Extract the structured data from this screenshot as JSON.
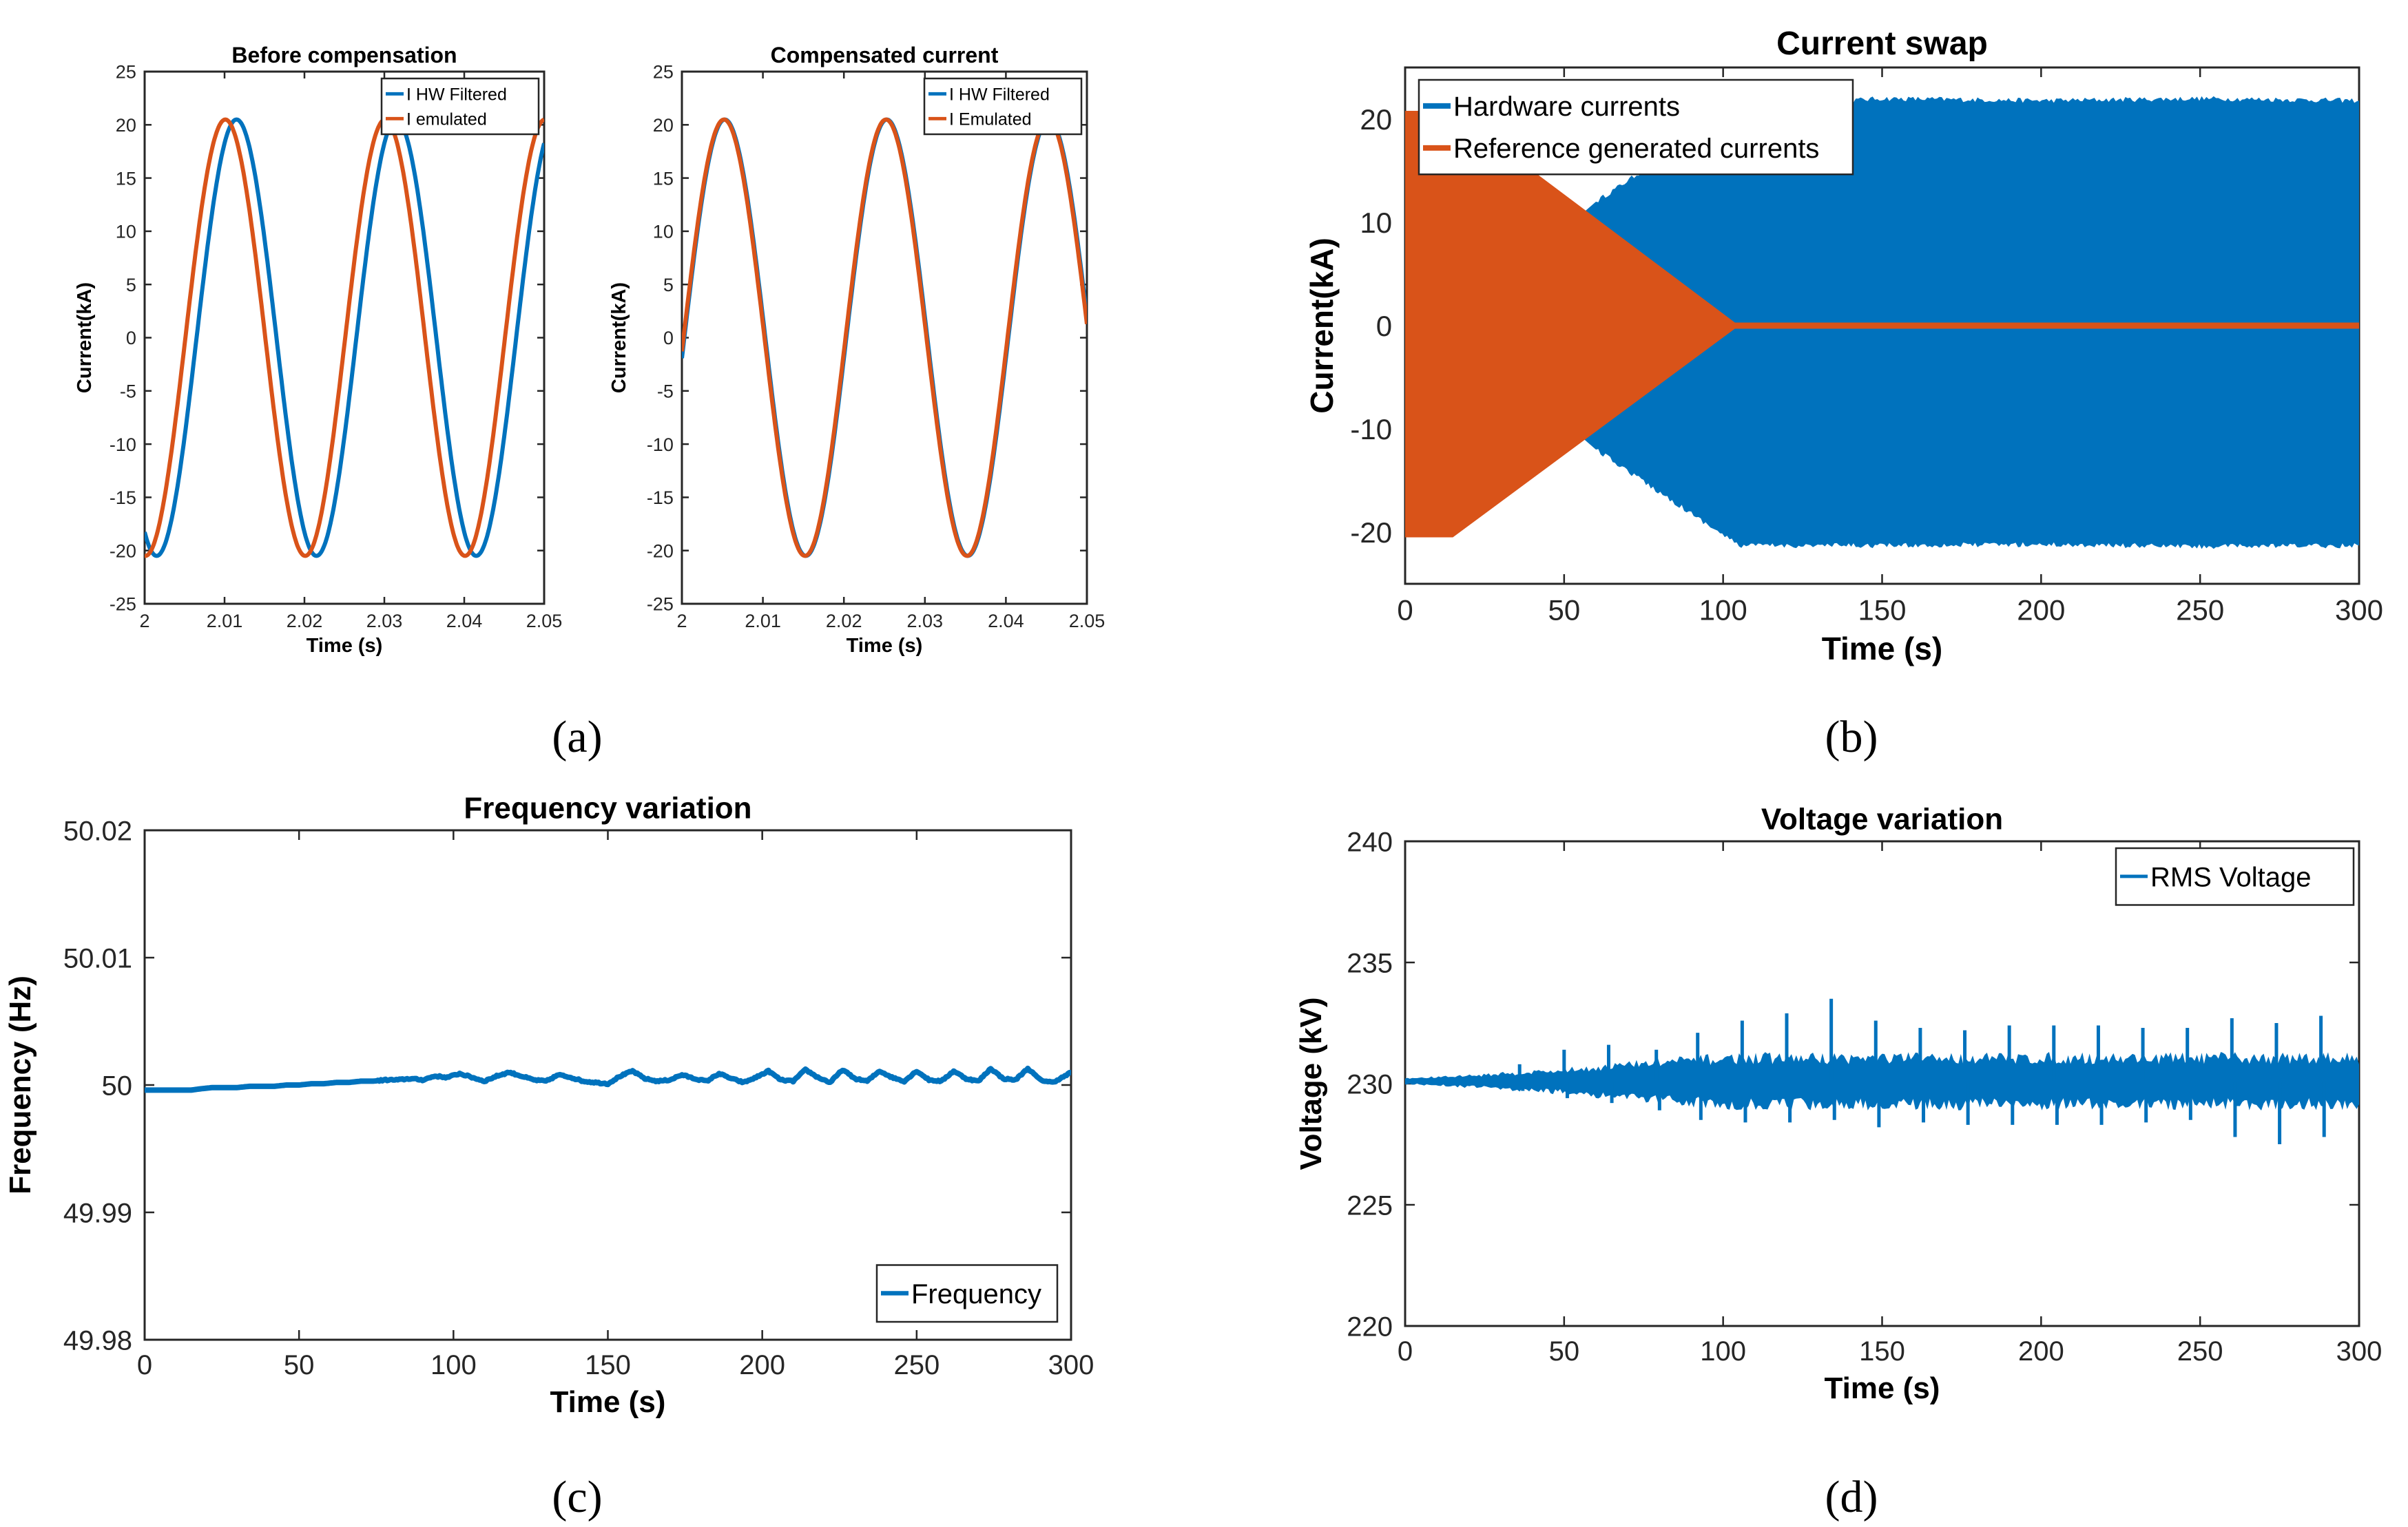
{
  "captions": [
    "(a)",
    "(b)",
    "(c)",
    "(d)"
  ],
  "chart_data": [
    {
      "id": "a1",
      "type": "line",
      "title": "Before compensation",
      "xlabel": "Time (s)",
      "ylabel": "Current(kA)",
      "xlim": [
        2,
        2.05
      ],
      "ylim": [
        -25,
        25
      ],
      "xticks": [
        2,
        2.01,
        2.02,
        2.03,
        2.04,
        2.05
      ],
      "xtick_labels": [
        "2",
        "2.01",
        "2.02",
        "2.03",
        "2.04",
        "2.05"
      ],
      "yticks": [
        -25,
        -20,
        -15,
        -10,
        -5,
        0,
        5,
        10,
        15,
        20,
        25
      ],
      "ytick_labels": [
        "-25",
        "-20",
        "-15",
        "-10",
        "-5",
        "0",
        "5",
        "10",
        "15",
        "20",
        "25"
      ],
      "legend_position": "top-right",
      "series": [
        {
          "name": "I HW Filtered",
          "kind": "sine",
          "amplitude": 20.5,
          "frequency": 50,
          "peak_at": 2.0115,
          "color": "#0072BD"
        },
        {
          "name": "I emulated",
          "kind": "sine",
          "amplitude": 20.5,
          "frequency": 50,
          "peak_at": 2.0101,
          "color": "#D95319"
        }
      ]
    },
    {
      "id": "a2",
      "type": "line",
      "title": "Compensated current",
      "xlabel": "Time (s)",
      "ylabel": "Current(kA)",
      "xlim": [
        2,
        2.05
      ],
      "ylim": [
        -25,
        25
      ],
      "xticks": [
        2,
        2.01,
        2.02,
        2.03,
        2.04,
        2.05
      ],
      "xtick_labels": [
        "2",
        "2.01",
        "2.02",
        "2.03",
        "2.04",
        "2.05"
      ],
      "yticks": [
        -25,
        -20,
        -15,
        -10,
        -5,
        0,
        5,
        10,
        15,
        20,
        25
      ],
      "ytick_labels": [
        "-25",
        "-20",
        "-15",
        "-10",
        "-5",
        "0",
        "5",
        "10",
        "15",
        "20",
        "25"
      ],
      "legend_position": "top-right",
      "series": [
        {
          "name": "I HW Filtered",
          "kind": "sine",
          "amplitude": 20.5,
          "frequency": 50,
          "peak_at": 2.0053,
          "color": "#0072BD"
        },
        {
          "name": "I Emulated",
          "kind": "sine",
          "amplitude": 20.5,
          "frequency": 50,
          "peak_at": 2.0052,
          "color": "#D95319"
        }
      ]
    },
    {
      "id": "b",
      "type": "area",
      "title": "Current swap",
      "xlabel": "Time (s)",
      "ylabel": "Current(kA)",
      "xlim": [
        0,
        300
      ],
      "ylim": [
        -25,
        25
      ],
      "xticks": [
        0,
        50,
        100,
        150,
        200,
        250,
        300
      ],
      "xtick_labels": [
        "0",
        "50",
        "100",
        "150",
        "200",
        "250",
        "300"
      ],
      "yticks": [
        -20,
        -10,
        0,
        10,
        20
      ],
      "ytick_labels": [
        "-20",
        "-10",
        "0",
        "10",
        "20"
      ],
      "legend_position": "top-left",
      "series": [
        {
          "name": "Hardware currents",
          "color": "#0072BD",
          "envelope_x": [
            0,
            15,
            60,
            105,
            150,
            200,
            250,
            300
          ],
          "envelope_upper": [
            0,
            0,
            12,
            21.2,
            22,
            21.8,
            22,
            21.8
          ],
          "envelope_lower": [
            0,
            0,
            -12,
            -21.3,
            -21.3,
            -21.2,
            -21.4,
            -21.3
          ]
        },
        {
          "name": "Reference generated currents",
          "color": "#D95319",
          "envelope_x": [
            0,
            15,
            105,
            300
          ],
          "envelope_upper": [
            20.8,
            20.8,
            0,
            0
          ],
          "envelope_lower": [
            -20.5,
            -20.5,
            0,
            0
          ]
        }
      ]
    },
    {
      "id": "c",
      "type": "line",
      "title": "Frequency variation",
      "xlabel": "Time (s)",
      "ylabel": "Frequency (Hz)",
      "xlim": [
        0,
        300
      ],
      "ylim": [
        49.98,
        50.02
      ],
      "xticks": [
        0,
        50,
        100,
        150,
        200,
        250,
        300
      ],
      "xtick_labels": [
        "0",
        "50",
        "100",
        "150",
        "200",
        "250",
        "300"
      ],
      "yticks": [
        49.98,
        49.99,
        50,
        50.01,
        50.02
      ],
      "ytick_labels": [
        "49.98",
        "49.99",
        "50",
        "50.01",
        "50.02"
      ],
      "legend_position": "bottom-right",
      "series": [
        {
          "name": "Frequency",
          "color": "#0072BD",
          "x": [
            0,
            15,
            18,
            22,
            26,
            30,
            34,
            38,
            42,
            46,
            50,
            54,
            58,
            62,
            66,
            70,
            74,
            78,
            82,
            86,
            90,
            94,
            98,
            102,
            106,
            110,
            114,
            118,
            122,
            126,
            130,
            134,
            138,
            142,
            146,
            150,
            154,
            158,
            162,
            166,
            170,
            174,
            178,
            182,
            186,
            190,
            194,
            198,
            202,
            206,
            210,
            214,
            218,
            222,
            226,
            230,
            234,
            238,
            242,
            246,
            250,
            254,
            258,
            262,
            266,
            270,
            274,
            278,
            282,
            286,
            290,
            294,
            298,
            300
          ],
          "y": [
            49.9996,
            49.9996,
            49.9997,
            49.9998,
            49.9998,
            49.9998,
            49.9999,
            49.9999,
            49.9999,
            50.0,
            50.0,
            50.0001,
            50.0001,
            50.0002,
            50.0002,
            50.0003,
            50.0003,
            50.0004,
            50.0004,
            50.0005,
            50.0004,
            50.0007,
            50.0006,
            50.0009,
            50.0006,
            50.0003,
            50.0007,
            50.001,
            50.0007,
            50.0004,
            50.0003,
            50.0008,
            50.0006,
            50.0003,
            50.0002,
            50.0001,
            50.0007,
            50.0011,
            50.0005,
            50.0003,
            50.0004,
            50.0008,
            50.0005,
            50.0003,
            50.0009,
            50.0005,
            50.0002,
            50.0006,
            50.0011,
            50.0004,
            50.0003,
            50.0012,
            50.0006,
            50.0002,
            50.0012,
            50.0005,
            50.0003,
            50.0011,
            50.0006,
            50.0003,
            50.0011,
            50.0004,
            50.0003,
            50.0011,
            50.0005,
            50.0003,
            50.0013,
            50.0005,
            50.0004,
            50.0013,
            50.0004,
            50.0002,
            50.0007,
            50.001
          ]
        }
      ]
    },
    {
      "id": "d",
      "type": "line",
      "title": "Voltage variation",
      "xlabel": "Time (s)",
      "ylabel": "Voltage (kV)",
      "xlim": [
        0,
        300
      ],
      "ylim": [
        220,
        240
      ],
      "xticks": [
        0,
        50,
        100,
        150,
        200,
        250,
        300
      ],
      "xtick_labels": [
        "0",
        "50",
        "100",
        "150",
        "200",
        "250",
        "300"
      ],
      "yticks": [
        220,
        225,
        230,
        235,
        240
      ],
      "ytick_labels": [
        "220",
        "225",
        "230",
        "235",
        "240"
      ],
      "legend_position": "top-right",
      "series": [
        {
          "name": "RMS Voltage",
          "color": "#0072BD",
          "mean": 230.1,
          "band_x": [
            0,
            20,
            50,
            80,
            105,
            300
          ],
          "band_half_width": [
            0.1,
            0.2,
            0.4,
            0.7,
            0.85,
            0.85
          ],
          "spikes_x": [
            36,
            50,
            64,
            79,
            92,
            106,
            120,
            134,
            148,
            162,
            176,
            190,
            204,
            218,
            232,
            246,
            260,
            274,
            288
          ],
          "spikes_up": [
            230.8,
            231.4,
            231.6,
            231.4,
            232.1,
            232.6,
            232.9,
            233.5,
            232.6,
            232.3,
            232.2,
            232.4,
            232.4,
            232.4,
            232.3,
            232.3,
            232.7,
            232.5,
            232.8
          ],
          "spikes_down": [
            229.7,
            229.4,
            229.2,
            228.9,
            228.5,
            228.4,
            228.4,
            228.5,
            228.2,
            228.4,
            228.3,
            228.3,
            228.3,
            228.3,
            228.4,
            228.5,
            227.8,
            227.5,
            227.8
          ]
        }
      ]
    }
  ]
}
